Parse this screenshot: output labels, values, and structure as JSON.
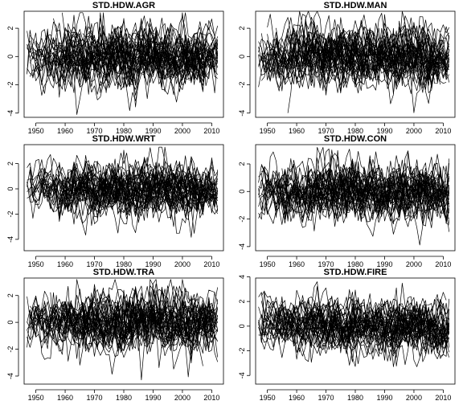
{
  "chart_data": [
    {
      "type": "line",
      "title": "STD.HDW.AGR",
      "xlabel": "",
      "ylabel": "",
      "xlim": [
        1946,
        2014
      ],
      "ylim": [
        -4.3,
        3.2
      ],
      "x_ticks": [
        1950,
        1960,
        1970,
        1980,
        1990,
        2000,
        2010
      ],
      "y_ticks": [
        -4,
        -2,
        0,
        2
      ],
      "series_count": 40,
      "x_range": [
        1947,
        2012
      ],
      "value_range": [
        -4.1,
        3.1
      ]
    },
    {
      "type": "line",
      "title": "STD.HDW.MAN",
      "xlabel": "",
      "ylabel": "",
      "xlim": [
        1946,
        2014
      ],
      "ylim": [
        -4.3,
        3.2
      ],
      "x_ticks": [
        1950,
        1960,
        1970,
        1980,
        1990,
        2000,
        2010
      ],
      "y_ticks": [
        -4,
        -2,
        0,
        2
      ],
      "series_count": 40,
      "x_range": [
        1947,
        2012
      ],
      "value_range": [
        -4.0,
        3.2
      ]
    },
    {
      "type": "line",
      "title": "STD.HDW.WRT",
      "xlabel": "",
      "ylabel": "",
      "xlim": [
        1946,
        2014
      ],
      "ylim": [
        -4.9,
        3.5
      ],
      "x_ticks": [
        1950,
        1960,
        1970,
        1980,
        1990,
        2000,
        2010
      ],
      "y_ticks": [
        -4,
        -2,
        0,
        2
      ],
      "series_count": 40,
      "x_range": [
        1947,
        2012
      ],
      "value_range": [
        -4.7,
        3.3
      ]
    },
    {
      "type": "line",
      "title": "STD.HDW.CON",
      "xlabel": "",
      "ylabel": "",
      "xlim": [
        1946,
        2014
      ],
      "ylim": [
        -4.3,
        3.4
      ],
      "x_ticks": [
        1950,
        1960,
        1970,
        1980,
        1990,
        2000,
        2010
      ],
      "y_ticks": [
        -4,
        -2,
        0,
        2
      ],
      "series_count": 40,
      "x_range": [
        1947,
        2012
      ],
      "value_range": [
        -4.1,
        3.2
      ]
    },
    {
      "type": "line",
      "title": "STD.HDW.TRA",
      "xlabel": "",
      "ylabel": "",
      "xlim": [
        1946,
        2014
      ],
      "ylim": [
        -4.6,
        3.3
      ],
      "x_ticks": [
        1950,
        1960,
        1970,
        1980,
        1990,
        2000,
        2010
      ],
      "y_ticks": [
        -4,
        -2,
        0,
        2
      ],
      "series_count": 40,
      "x_range": [
        1947,
        2012
      ],
      "value_range": [
        -4.4,
        3.2
      ]
    },
    {
      "type": "line",
      "title": "STD.HDW.FIRE",
      "xlabel": "",
      "ylabel": "",
      "xlim": [
        1946,
        2014
      ],
      "ylim": [
        -4.7,
        3.9
      ],
      "x_ticks": [
        1950,
        1960,
        1970,
        1980,
        1990,
        2000,
        2010
      ],
      "y_ticks": [
        -4,
        -2,
        0,
        2,
        4
      ],
      "series_count": 40,
      "x_range": [
        1947,
        2012
      ],
      "value_range": [
        -4.4,
        3.6
      ]
    }
  ]
}
